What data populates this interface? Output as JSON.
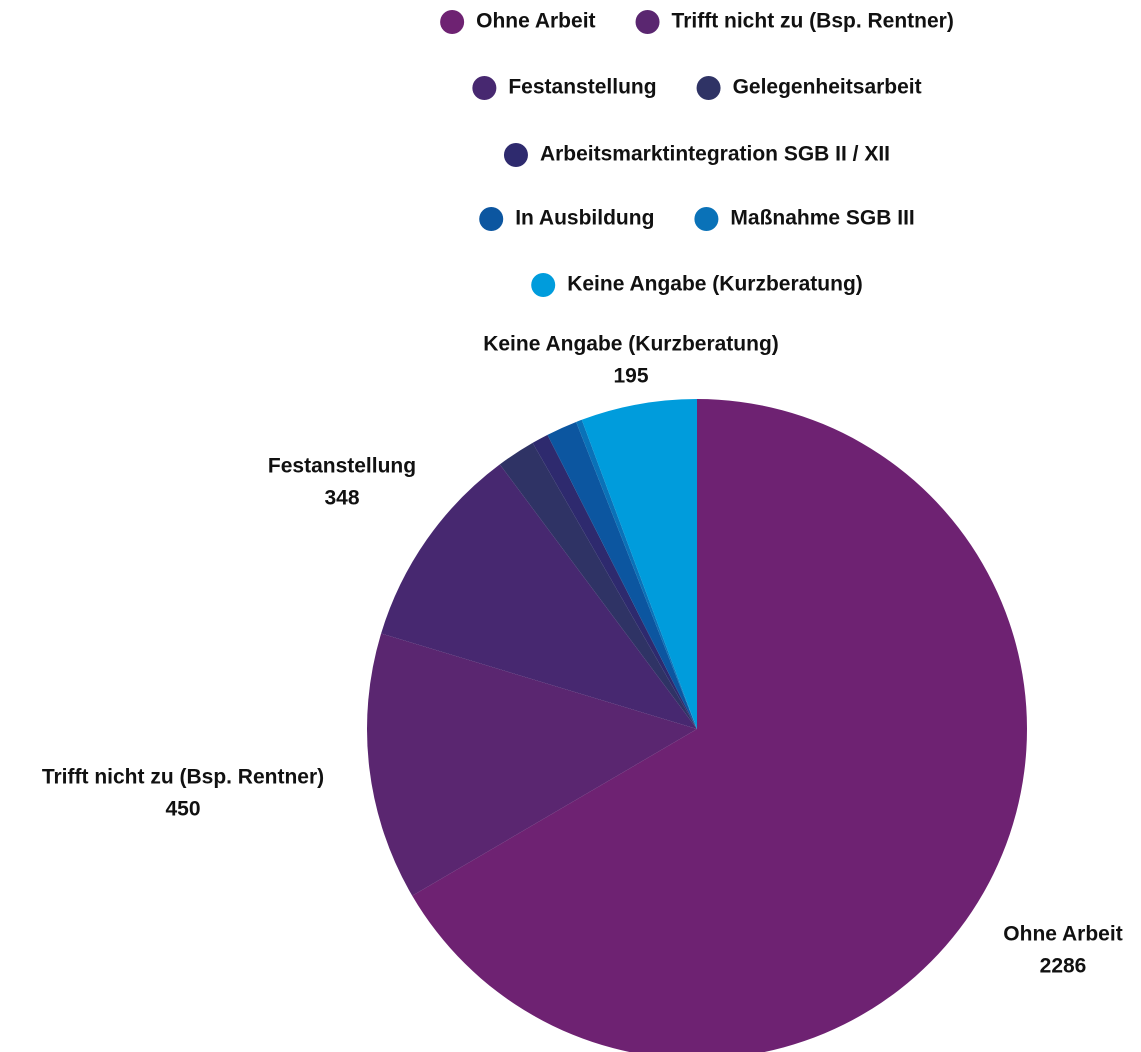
{
  "chart_data": {
    "type": "pie",
    "categories": [
      "Ohne Arbeit",
      "Trifft nicht zu (Bsp. Rentner)",
      "Festanstellung",
      "Gelegenheitsarbeit",
      "Arbeitsmarktintegration SGB II / XII",
      "In Ausbildung",
      "Maßnahme SGB III",
      "Keine Angabe (Kurzberatung)"
    ],
    "values": [
      2286,
      450,
      348,
      65,
      28,
      52,
      10,
      195
    ],
    "colors": [
      "#6e2272",
      "#5a2670",
      "#472870",
      "#2f3365",
      "#2e2a6e",
      "#0c56a0",
      "#0a72b8",
      "#009cdc"
    ],
    "legend": "top"
  }
}
